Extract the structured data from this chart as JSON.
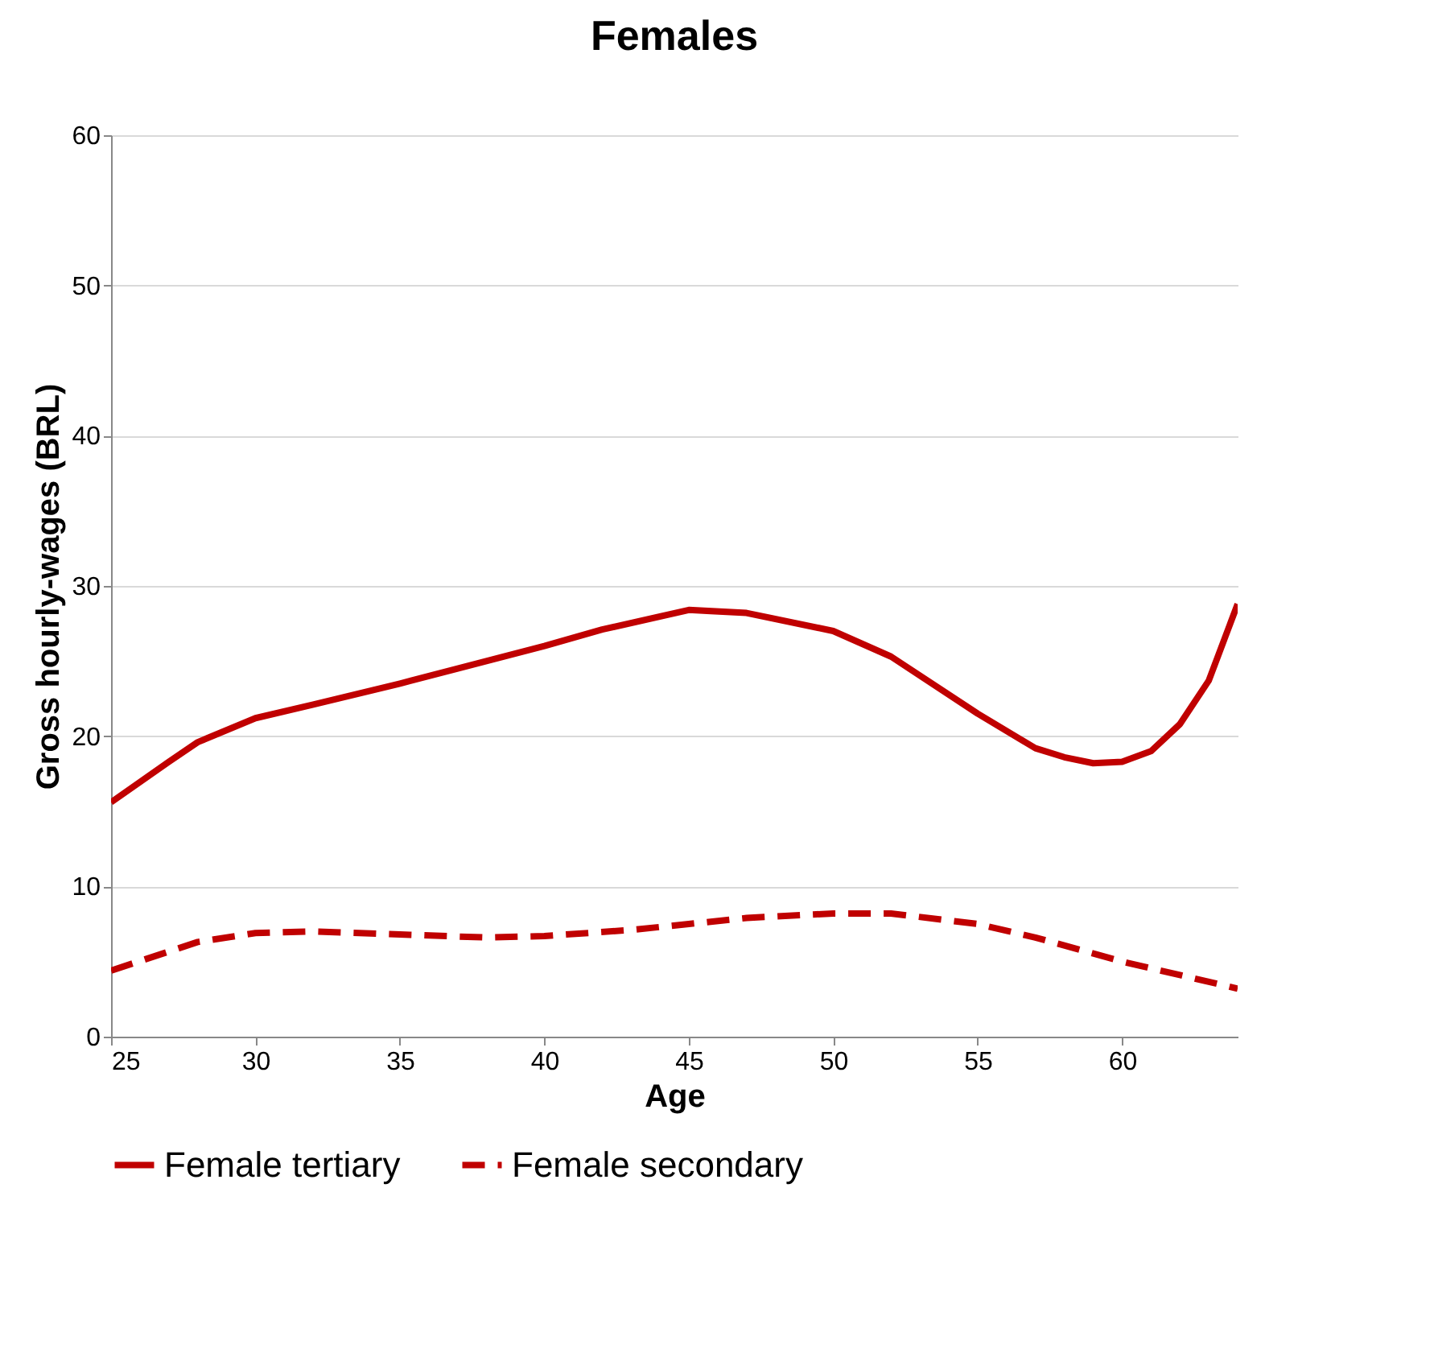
{
  "chart_data": {
    "type": "line",
    "title": "Females",
    "xlabel": "Age",
    "ylabel": "Gross hourly-wages  (BRL)",
    "xlim": [
      25,
      64
    ],
    "xticks": [
      25,
      30,
      35,
      40,
      45,
      50,
      55,
      60
    ],
    "ylim": [
      0,
      60
    ],
    "yticks": [
      0,
      10,
      20,
      30,
      40,
      50,
      60
    ],
    "grid": "y",
    "legend": "bottom",
    "marker": "none",
    "series": [
      {
        "name": "Female tertiary",
        "color": "#c00000",
        "line_style": "solid",
        "x": [
          25,
          27,
          28,
          30,
          32,
          35,
          37,
          40,
          42,
          45,
          47,
          50,
          52,
          55,
          57,
          58,
          59,
          60,
          61,
          62,
          63,
          64
        ],
        "values": [
          15.6,
          18.3,
          19.6,
          21.2,
          22.1,
          23.5,
          24.5,
          26,
          27.1,
          28.4,
          28.2,
          27,
          25.3,
          21.5,
          19.2,
          18.6,
          18.2,
          18.3,
          19,
          20.8,
          23.7,
          28.8
        ]
      },
      {
        "name": "Female secondary",
        "color": "#c00000",
        "line_style": "dashed",
        "x": [
          25,
          28,
          30,
          32,
          35,
          38,
          40,
          43,
          45,
          47,
          50,
          52,
          55,
          57,
          60,
          62,
          64
        ],
        "values": [
          4.4,
          6.3,
          6.9,
          7.0,
          6.8,
          6.6,
          6.7,
          7.1,
          7.5,
          7.9,
          8.2,
          8.2,
          7.5,
          6.6,
          5.0,
          4.1,
          3.2
        ]
      }
    ]
  }
}
